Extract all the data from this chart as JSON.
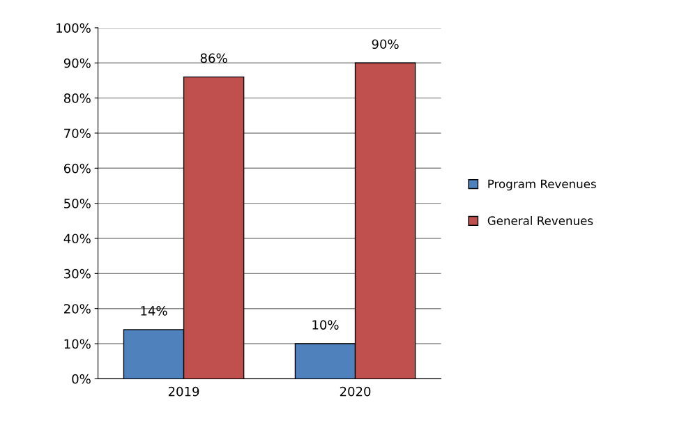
{
  "chart_data": {
    "type": "bar",
    "categories": [
      "2019",
      "2020"
    ],
    "series": [
      {
        "name": "Program Revenues",
        "color": "#4f81bd",
        "values": [
          14,
          10
        ],
        "value_labels": [
          "14%",
          "10%"
        ]
      },
      {
        "name": "General Revenues",
        "color": "#c0504d",
        "values": [
          86,
          90
        ],
        "value_labels": [
          "86%",
          "90%"
        ]
      }
    ],
    "ylim": [
      0,
      100
    ],
    "yticks": [
      {
        "value": 0,
        "label": "0%"
      },
      {
        "value": 10,
        "label": "10%"
      },
      {
        "value": 20,
        "label": "20%"
      },
      {
        "value": 30,
        "label": "30%"
      },
      {
        "value": 40,
        "label": "40%"
      },
      {
        "value": 50,
        "label": "50%"
      },
      {
        "value": 60,
        "label": "60%"
      },
      {
        "value": 70,
        "label": "70%"
      },
      {
        "value": 80,
        "label": "80%"
      },
      {
        "value": 90,
        "label": "90%"
      },
      {
        "value": 100,
        "label": "100%"
      }
    ],
    "grid": "y",
    "legend": "right"
  }
}
